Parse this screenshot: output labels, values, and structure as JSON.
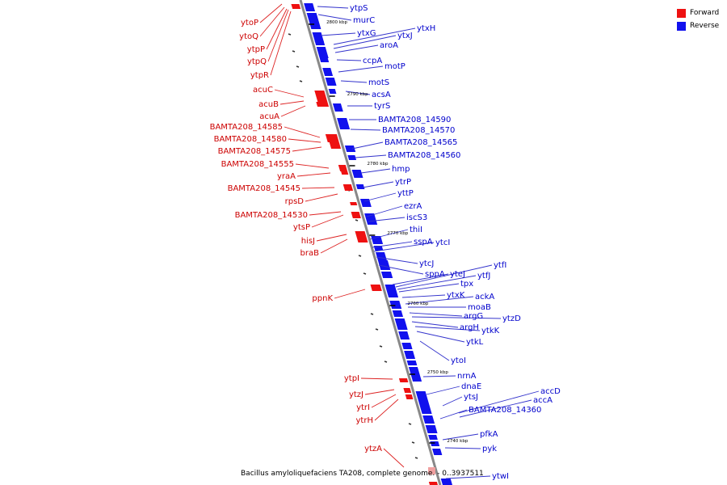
{
  "legend": {
    "forward": {
      "label": "Forward",
      "color": "#ee1111"
    },
    "reverse": {
      "label": "Reverse",
      "color": "#1111ee"
    }
  },
  "caption": "Bacillus amyloliquefaciens TA208, complete genome. - 0..3937511",
  "colors": {
    "forward": "#ee1111",
    "reverse": "#1111ee",
    "backbone": "#888888",
    "leader_red": "#dd2222",
    "leader_blue": "#3333cc"
  },
  "kbp_ticks": [
    "2800 kbp",
    "2790 kbp",
    "2780 kbp",
    "2770 kbp",
    "2760 kbp",
    "2750 kbp",
    "2740 kbp"
  ],
  "forward_genes": [
    "ytoP",
    "ytoQ",
    "ytpP",
    "ytpQ",
    "ytpR",
    "acuC",
    "acuB",
    "acuA",
    "BAMTA208_14585",
    "BAMTA208_14580",
    "BAMTA208_14575",
    "BAMTA208_14555",
    "yraA",
    "BAMTA208_14545",
    "rpsD",
    "BAMTA208_14530",
    "ytsP",
    "hisJ",
    "braB",
    "ppnK",
    "ytpI",
    "ytzJ",
    "ytrI",
    "ytrH",
    "ytzA"
  ],
  "reverse_genes": [
    "ytpS",
    "murC",
    "ytxG",
    "ytxH",
    "ytxJ",
    "aroA",
    "ccpA",
    "motP",
    "motS",
    "acsA",
    "tyrS",
    "BAMTA208_14590",
    "BAMTA208_14570",
    "BAMTA208_14565",
    "BAMTA208_14560",
    "hmp",
    "ytrP",
    "yttP",
    "ezrA",
    "iscS3",
    "thiI",
    "sspA",
    "ytcI",
    "ytcJ",
    "sppA",
    "yteJ",
    "ytfI",
    "ytfJ",
    "tpx",
    "ytxK",
    "ackA",
    "moaB",
    "argG",
    "ytzD",
    "argH",
    "ytkK",
    "ytkL",
    "ytoI",
    "nrnA",
    "dnaE",
    "ytsJ",
    "accD",
    "accA",
    "BAMTA208_14360",
    "pfkA",
    "pyk",
    "ytwI"
  ]
}
